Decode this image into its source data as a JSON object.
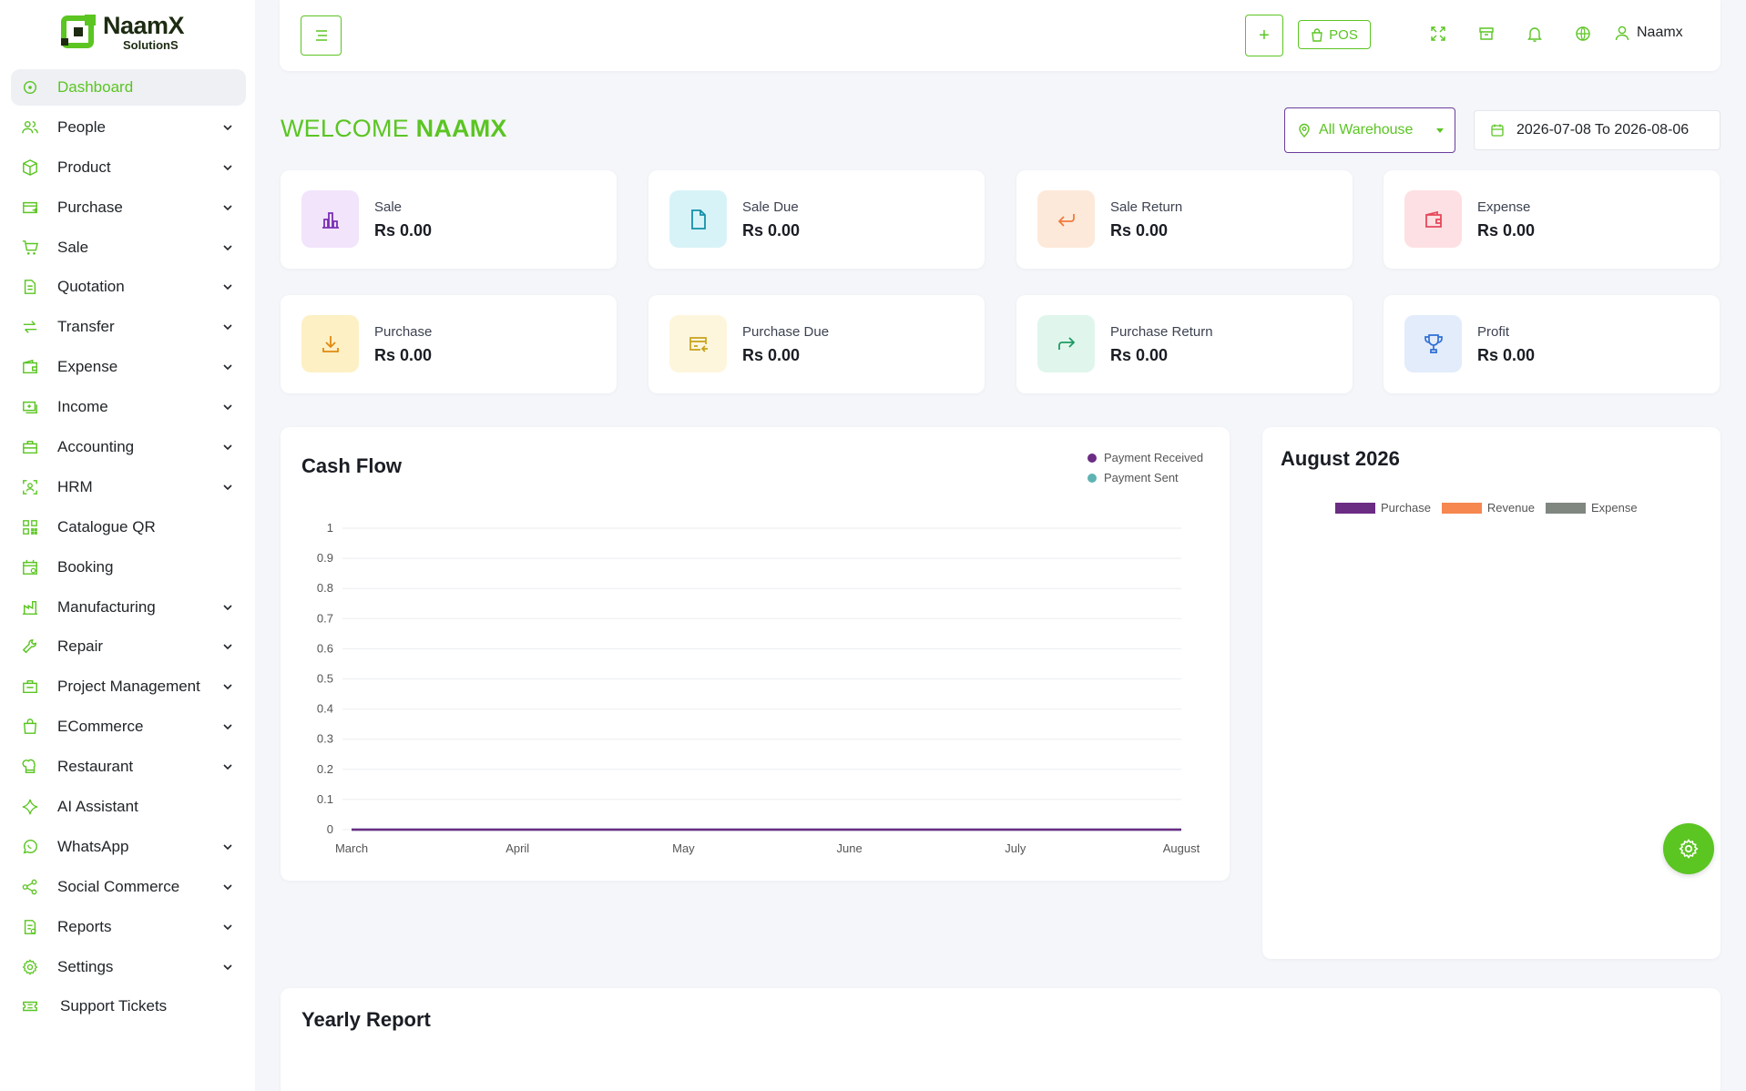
{
  "brand": {
    "name": "NaamX",
    "sub": "SolutionS"
  },
  "sidebar": {
    "items": [
      {
        "label": "Dashboard",
        "icon": "dashboard-icon",
        "expandable": false,
        "active": true
      },
      {
        "label": "People",
        "icon": "people-icon",
        "expandable": true
      },
      {
        "label": "Product",
        "icon": "box-icon",
        "expandable": true
      },
      {
        "label": "Purchase",
        "icon": "purchase-icon",
        "expandable": true
      },
      {
        "label": "Sale",
        "icon": "cart-icon",
        "expandable": true
      },
      {
        "label": "Quotation",
        "icon": "quotation-icon",
        "expandable": true
      },
      {
        "label": "Transfer",
        "icon": "transfer-icon",
        "expandable": true
      },
      {
        "label": "Expense",
        "icon": "wallet-icon",
        "expandable": true
      },
      {
        "label": "Income",
        "icon": "income-icon",
        "expandable": true
      },
      {
        "label": "Accounting",
        "icon": "briefcase-icon",
        "expandable": true
      },
      {
        "label": "HRM",
        "icon": "hrm-icon",
        "expandable": true
      },
      {
        "label": "Catalogue QR",
        "icon": "qr-icon",
        "expandable": false
      },
      {
        "label": "Booking",
        "icon": "calendar-icon",
        "expandable": false
      },
      {
        "label": "Manufacturing",
        "icon": "factory-icon",
        "expandable": true
      },
      {
        "label": "Repair",
        "icon": "wrench-icon",
        "expandable": true
      },
      {
        "label": "Project Management",
        "icon": "project-icon",
        "expandable": true
      },
      {
        "label": "ECommerce",
        "icon": "shopping-bag-icon",
        "expandable": true
      },
      {
        "label": "Restaurant",
        "icon": "chef-hat-icon",
        "expandable": true
      },
      {
        "label": "AI Assistant",
        "icon": "sparkle-icon",
        "expandable": false
      },
      {
        "label": "WhatsApp",
        "icon": "whatsapp-icon",
        "expandable": true
      },
      {
        "label": "Social Commerce",
        "icon": "share-icon",
        "expandable": true
      },
      {
        "label": "Reports",
        "icon": "report-icon",
        "expandable": true
      },
      {
        "label": "Settings",
        "icon": "gear-icon",
        "expandable": true
      },
      {
        "label": "Support Tickets",
        "icon": "ticket-icon",
        "expandable": false
      }
    ]
  },
  "topbar": {
    "pos_label": "POS",
    "user_name": "Naamx"
  },
  "welcome": {
    "prefix": "WELCOME ",
    "name": "NAAMX"
  },
  "filters": {
    "warehouse": "All Warehouse",
    "date_range": "2026-07-08 To 2026-08-06"
  },
  "stats": [
    {
      "label": "Sale",
      "value": "Rs 0.00",
      "bg": "#f1e4fb",
      "fg": "#7b2fb4"
    },
    {
      "label": "Sale Due",
      "value": "Rs 0.00",
      "bg": "#d8f3f8",
      "fg": "#1590a8"
    },
    {
      "label": "Sale Return",
      "value": "Rs 0.00",
      "bg": "#fde9da",
      "fg": "#f07a3c"
    },
    {
      "label": "Expense",
      "value": "Rs 0.00",
      "bg": "#fde0e3",
      "fg": "#e5485b"
    },
    {
      "label": "Purchase",
      "value": "Rs 0.00",
      "bg": "#fdf0c4",
      "fg": "#e08a12"
    },
    {
      "label": "Purchase Due",
      "value": "Rs 0.00",
      "bg": "#fdf6dd",
      "fg": "#c7a21a"
    },
    {
      "label": "Purchase Return",
      "value": "Rs 0.00",
      "bg": "#e0f6ec",
      "fg": "#1f9a63"
    },
    {
      "label": "Profit",
      "value": "Rs 0.00",
      "bg": "#e3ecfb",
      "fg": "#2f6fd6"
    }
  ],
  "cash_flow": {
    "title": "Cash Flow",
    "legend": [
      {
        "name": "Payment Received",
        "color": "#6b2c84"
      },
      {
        "name": "Payment Sent",
        "color": "#5fb3b3"
      }
    ]
  },
  "monthly": {
    "title": "August 2026",
    "legend": [
      {
        "name": "Purchase",
        "color": "#6b2c84"
      },
      {
        "name": "Revenue",
        "color": "#f5874f"
      },
      {
        "name": "Expense",
        "color": "#7f8780"
      }
    ]
  },
  "yearly": {
    "title": "Yearly Report"
  },
  "chart_data": [
    {
      "type": "line",
      "title": "Cash Flow",
      "categories": [
        "March",
        "April",
        "May",
        "June",
        "July",
        "August"
      ],
      "series": [
        {
          "name": "Payment Received",
          "values": [
            0,
            0,
            0,
            0,
            0,
            0
          ],
          "color": "#6b2c84"
        },
        {
          "name": "Payment Sent",
          "values": [
            0,
            0,
            0,
            0,
            0,
            0
          ],
          "color": "#5fb3b3"
        }
      ],
      "ylim": [
        0,
        1
      ],
      "yticks": [
        "0",
        "0.1",
        "0.2",
        "0.3",
        "0.4",
        "0.5",
        "0.6",
        "0.7",
        "0.8",
        "0.9",
        "1"
      ],
      "grid": true,
      "legend": "top-right"
    }
  ]
}
